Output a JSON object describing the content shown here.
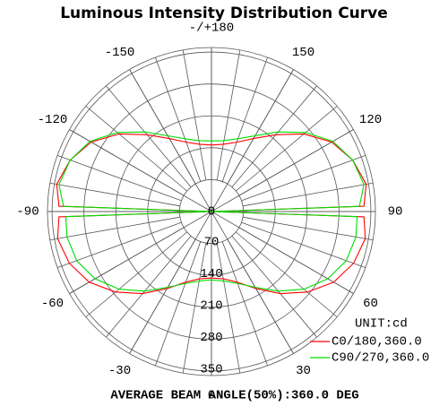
{
  "chart_data": {
    "type": "polar",
    "title": "Luminous Intensity Distribution Curve",
    "theta": [
      -180,
      -170,
      -160,
      -150,
      -140,
      -130,
      -120,
      -110,
      -100,
      -92,
      -90,
      -88,
      -80,
      -70,
      -60,
      -50,
      -40,
      -30,
      -20,
      -10,
      0,
      10,
      20,
      30,
      40,
      50,
      60,
      70,
      80,
      88,
      90,
      92,
      100,
      110,
      120,
      130,
      140,
      150,
      160,
      170,
      180
    ],
    "series": [
      {
        "name": "C0/180,360.0",
        "color": "#ff0000",
        "values": [
          146,
          150,
          162,
          185,
          220,
          265,
          305,
          330,
          345,
          335,
          0,
          335,
          343,
          332,
          310,
          275,
          235,
          195,
          165,
          150,
          146,
          150,
          165,
          195,
          235,
          275,
          310,
          332,
          343,
          335,
          0,
          335,
          345,
          330,
          305,
          265,
          220,
          185,
          162,
          150,
          146
        ]
      },
      {
        "name": "C90/270,360.0",
        "color": "#00dd00",
        "values": [
          155,
          158,
          170,
          192,
          228,
          270,
          308,
          330,
          340,
          325,
          0,
          320,
          322,
          315,
          295,
          265,
          228,
          192,
          168,
          155,
          150,
          155,
          168,
          192,
          228,
          265,
          295,
          315,
          322,
          320,
          0,
          325,
          340,
          330,
          308,
          270,
          228,
          192,
          170,
          158,
          155
        ]
      }
    ],
    "rlim": [
      0,
      360
    ],
    "rticks": [
      0,
      70,
      140,
      210,
      280,
      350
    ],
    "thetaticks": [
      {
        "value": 180,
        "label": "-/+180"
      },
      150,
      120,
      90,
      60,
      30,
      0,
      -30,
      -60,
      -90,
      -120,
      -150
    ],
    "unit": "UNIT:cd",
    "footer": "AVERAGE BEAM ANGLE(50%):360.0 DEG"
  }
}
